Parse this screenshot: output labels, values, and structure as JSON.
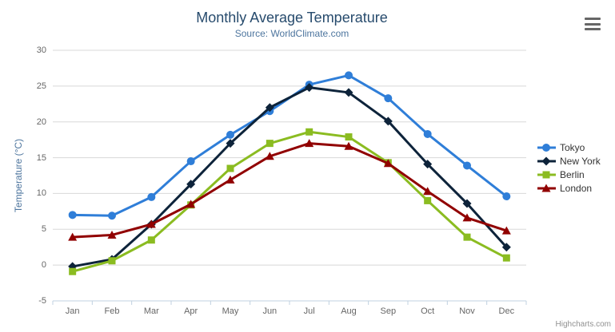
{
  "chart": {
    "title": "Monthly Average Temperature",
    "subtitle": "Source: WorldClimate.com",
    "credit": "Highcharts.com"
  },
  "chart_data": {
    "type": "line",
    "title": "Monthly Average Temperature",
    "subtitle": "Source: WorldClimate.com",
    "categories": [
      "Jan",
      "Feb",
      "Mar",
      "Apr",
      "May",
      "Jun",
      "Jul",
      "Aug",
      "Sep",
      "Oct",
      "Nov",
      "Dec"
    ],
    "series": [
      {
        "name": "Tokyo",
        "color": "#2f7ed8",
        "marker": "circle",
        "values": [
          7.0,
          6.9,
          9.5,
          14.5,
          18.2,
          21.5,
          25.2,
          26.5,
          23.3,
          18.3,
          13.9,
          9.6
        ]
      },
      {
        "name": "New York",
        "color": "#0d233a",
        "marker": "diamond",
        "values": [
          -0.2,
          0.8,
          5.7,
          11.3,
          17.0,
          22.0,
          24.8,
          24.1,
          20.1,
          14.1,
          8.6,
          2.5
        ]
      },
      {
        "name": "Berlin",
        "color": "#8bbc21",
        "marker": "square",
        "values": [
          -0.9,
          0.6,
          3.5,
          8.4,
          13.5,
          17.0,
          18.6,
          17.9,
          14.3,
          9.0,
          3.9,
          1.0
        ]
      },
      {
        "name": "London",
        "color": "#910000",
        "marker": "triangle",
        "values": [
          3.9,
          4.2,
          5.7,
          8.5,
          11.9,
          15.2,
          17.0,
          16.6,
          14.2,
          10.3,
          6.6,
          4.8
        ]
      }
    ],
    "xlabel": "",
    "ylabel": "Temperature (°C)",
    "ylim": [
      -5,
      30
    ],
    "yticks": [
      -5,
      0,
      5,
      10,
      15,
      20,
      25,
      30
    ],
    "grid": true,
    "legend_position": "right"
  },
  "colors": {
    "title": "#274b6d",
    "subtitle": "#4d759e",
    "grid_line": "#d8d8d8",
    "axis_line": "#c0d0e0",
    "axis_label": "#666666",
    "yaxis_title": "#4d759e",
    "legend_text": "#333333",
    "credit_text": "#909090",
    "menu_icon": "#666666"
  }
}
